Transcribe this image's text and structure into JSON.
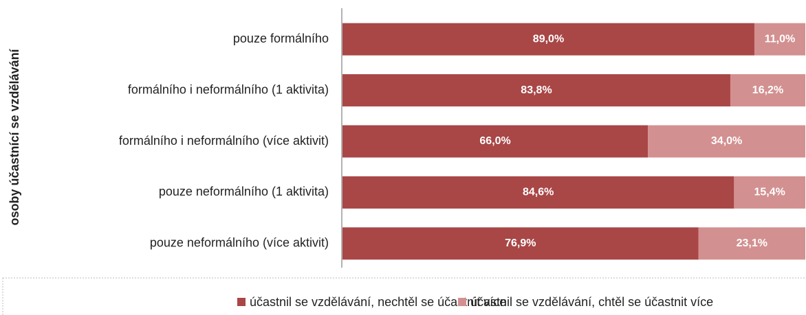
{
  "chart_data": {
    "type": "stacked_barh",
    "ylabel": "osoby účastnící se vzdělávání",
    "categories": [
      "pouze formálního",
      "formálního i neformálního (1 aktivita)",
      "formálního i neformálního (více aktivit)",
      "pouze neformálního (1 aktivita)",
      "pouze neformálního (více aktivit)"
    ],
    "series": [
      {
        "name": "účastnil se vzdělávání, nechtěl se účastnit více",
        "color": "#a94646",
        "values": [
          89.0,
          83.8,
          66.0,
          84.6,
          76.9
        ],
        "value_labels": [
          "89,0%",
          "83,8%",
          "66,0%",
          "84,6%",
          "76,9%"
        ]
      },
      {
        "name": "účastnil se vzdělávání, chtěl se účastnit více",
        "color": "#d39090",
        "values": [
          11.0,
          16.2,
          34.0,
          15.4,
          23.1
        ],
        "value_labels": [
          "11,0%",
          "16,2%",
          "34,0%",
          "15,4%",
          "23,1%"
        ]
      }
    ],
    "xlim": [
      0,
      100
    ]
  }
}
